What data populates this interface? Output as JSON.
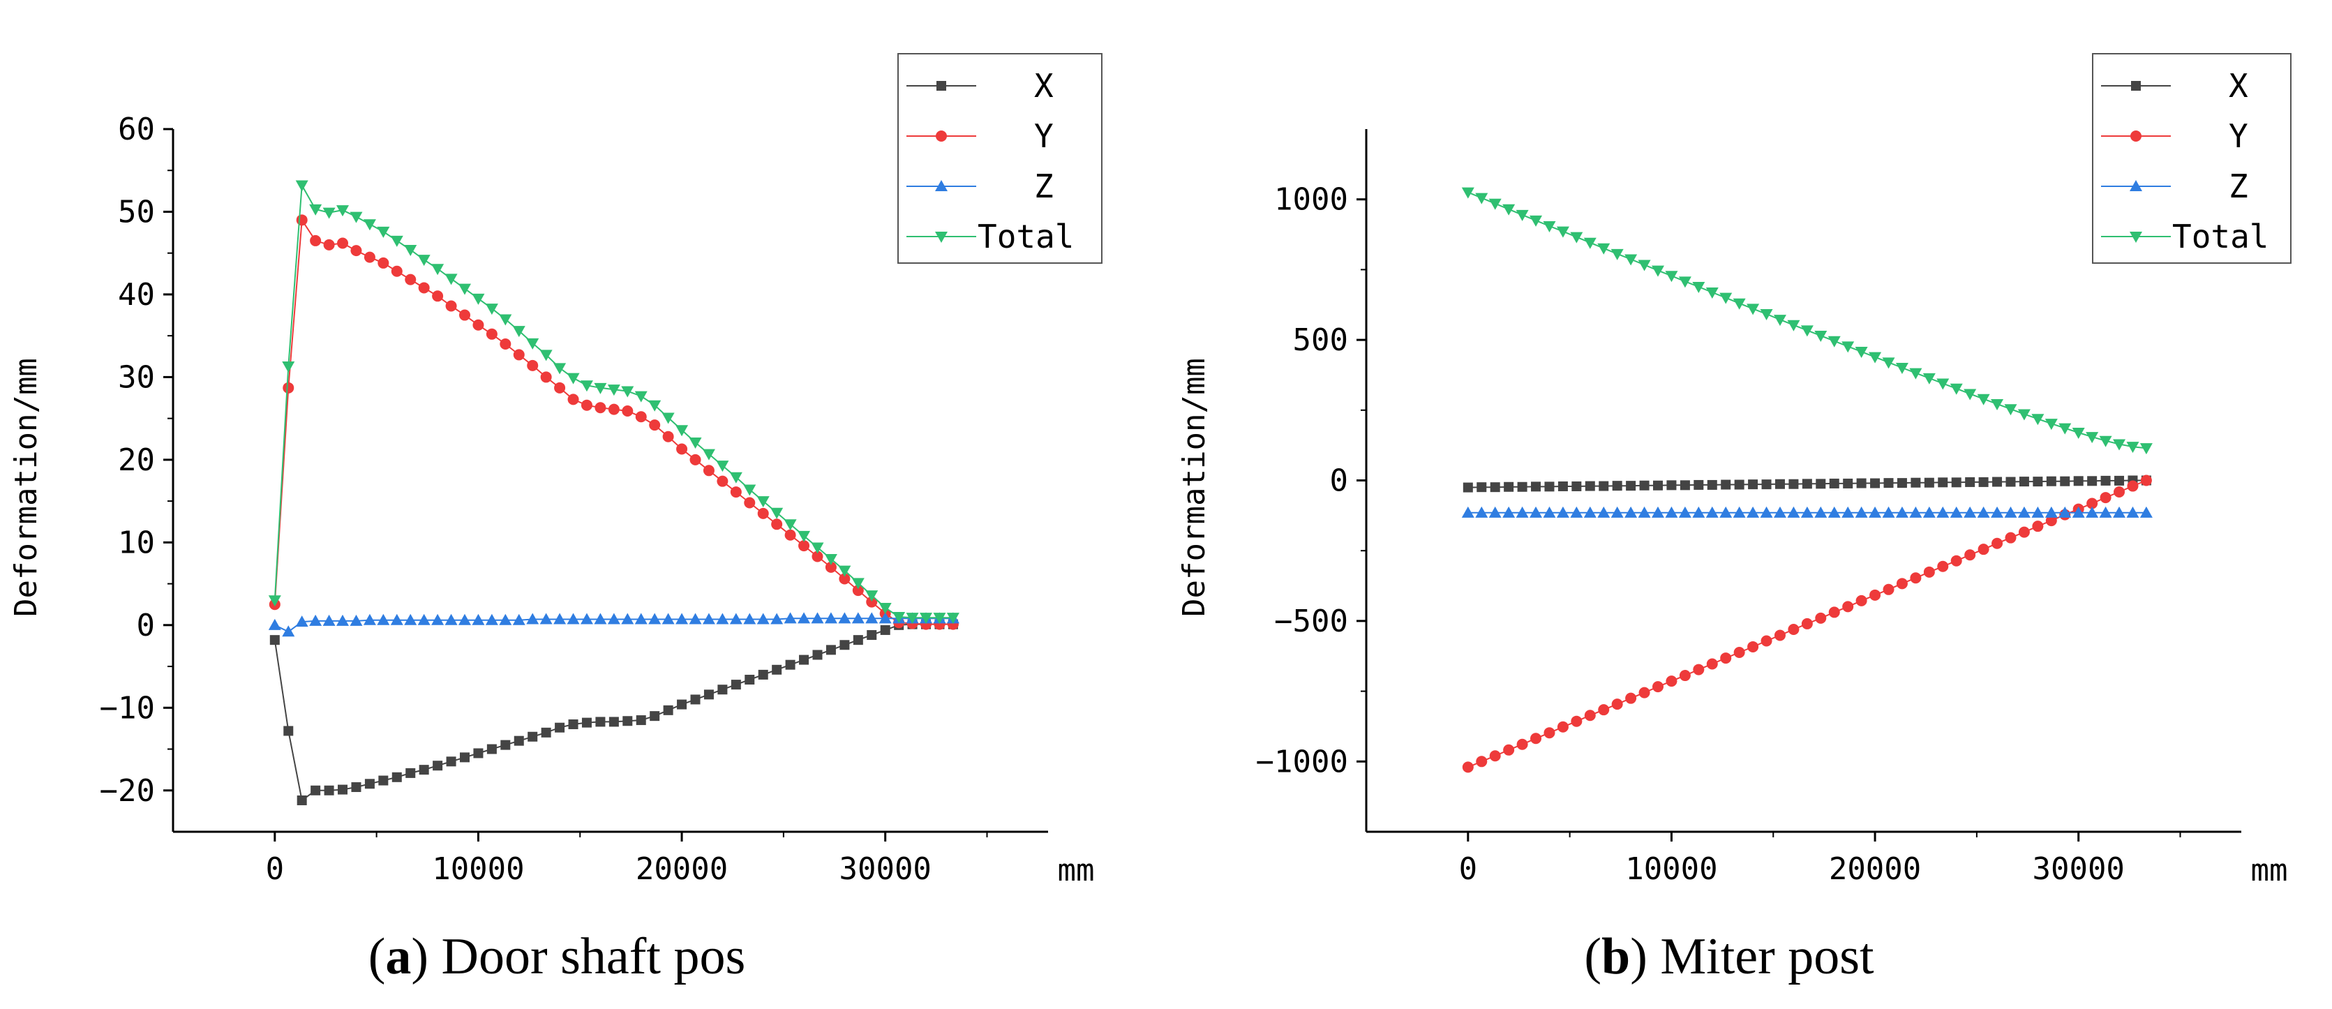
{
  "chart_data": [
    {
      "type": "line",
      "caption_letter": "a",
      "caption_text": " Door shaft pos",
      "xlabel": "mm",
      "ylabel": "Deformation/mm",
      "xlim": [
        -5000,
        38000
      ],
      "ylim": [
        -25,
        60
      ],
      "xticks": [
        0,
        10000,
        20000,
        30000
      ],
      "xtick_labels": [
        "0",
        "10000",
        "20000",
        "30000"
      ],
      "yticks": [
        -20,
        -10,
        0,
        10,
        20,
        30,
        40,
        50,
        60
      ],
      "ytick_labels": [
        "−20",
        "−10",
        "0",
        "10",
        "20",
        "30",
        "40",
        "50",
        "60"
      ],
      "x": [
        0,
        667,
        1333,
        2000,
        2667,
        3333,
        4000,
        4667,
        5333,
        6000,
        6667,
        7333,
        8000,
        8667,
        9333,
        10000,
        10667,
        11333,
        12000,
        12667,
        13333,
        14000,
        14667,
        15333,
        16000,
        16667,
        17333,
        18000,
        18667,
        19333,
        20000,
        20667,
        21333,
        22000,
        22667,
        23333,
        24000,
        24667,
        25333,
        26000,
        26667,
        27333,
        28000,
        28667,
        29333,
        30000,
        30667,
        31333,
        32000,
        32667,
        33333
      ],
      "series": [
        {
          "name": "X",
          "color": "#444444",
          "marker": "square",
          "values": [
            -1.8,
            -12.8,
            -21.2,
            -20.0,
            -20.0,
            -19.9,
            -19.6,
            -19.2,
            -18.8,
            -18.4,
            -17.9,
            -17.5,
            -17.0,
            -16.5,
            -16.0,
            -15.5,
            -15.0,
            -14.5,
            -14.0,
            -13.5,
            -13.0,
            -12.4,
            -12.0,
            -11.8,
            -11.7,
            -11.7,
            -11.6,
            -11.5,
            -11.0,
            -10.3,
            -9.6,
            -9.0,
            -8.4,
            -7.8,
            -7.2,
            -6.6,
            -6.0,
            -5.4,
            -4.8,
            -4.2,
            -3.6,
            -3.0,
            -2.4,
            -1.8,
            -1.2,
            -0.6,
            0.0,
            0.1,
            0.1,
            0.1,
            0.1
          ]
        },
        {
          "name": "Y",
          "color": "#ee3a3a",
          "marker": "circle",
          "values": [
            2.5,
            28.7,
            49.0,
            46.5,
            46.0,
            46.2,
            45.3,
            44.5,
            43.8,
            42.8,
            41.8,
            40.8,
            39.8,
            38.6,
            37.5,
            36.3,
            35.2,
            34.0,
            32.7,
            31.4,
            30.0,
            28.7,
            27.3,
            26.6,
            26.3,
            26.1,
            25.9,
            25.2,
            24.2,
            22.8,
            21.3,
            20.0,
            18.7,
            17.4,
            16.1,
            14.8,
            13.5,
            12.2,
            10.9,
            9.6,
            8.3,
            7.0,
            5.6,
            4.2,
            2.8,
            1.4,
            0.3,
            0.2,
            0.1,
            0.1,
            0.1
          ]
        },
        {
          "name": "Z",
          "color": "#2f7de1",
          "marker": "triangle-up",
          "values": [
            0.0,
            -0.8,
            0.4,
            0.5,
            0.5,
            0.5,
            0.5,
            0.6,
            0.6,
            0.6,
            0.6,
            0.6,
            0.6,
            0.6,
            0.6,
            0.6,
            0.6,
            0.6,
            0.6,
            0.7,
            0.7,
            0.7,
            0.7,
            0.7,
            0.7,
            0.7,
            0.7,
            0.7,
            0.7,
            0.7,
            0.7,
            0.7,
            0.7,
            0.7,
            0.7,
            0.7,
            0.7,
            0.7,
            0.8,
            0.8,
            0.8,
            0.8,
            0.8,
            0.8,
            0.8,
            0.8,
            0.8,
            0.8,
            0.8,
            0.8,
            0.8
          ]
        },
        {
          "name": "Total",
          "color": "#2fbf71",
          "marker": "triangle-down",
          "values": [
            3.0,
            31.3,
            53.2,
            50.3,
            49.9,
            50.2,
            49.4,
            48.5,
            47.6,
            46.5,
            45.4,
            44.2,
            43.1,
            41.9,
            40.7,
            39.5,
            38.3,
            37.0,
            35.6,
            34.1,
            32.7,
            31.1,
            29.9,
            29.0,
            28.7,
            28.5,
            28.3,
            27.7,
            26.6,
            25.1,
            23.6,
            22.1,
            20.7,
            19.3,
            17.9,
            16.4,
            15.0,
            13.6,
            12.2,
            10.8,
            9.4,
            8.0,
            6.6,
            5.1,
            3.6,
            2.1,
            1.0,
            0.9,
            0.9,
            0.9,
            0.9
          ]
        }
      ],
      "legend_position": "top-right"
    },
    {
      "type": "line",
      "caption_letter": "b",
      "caption_text": " Miter post",
      "xlabel": "mm",
      "ylabel": "Deformation/mm",
      "xlim": [
        -5000,
        38000
      ],
      "ylim": [
        -1250,
        1250
      ],
      "xticks": [
        0,
        10000,
        20000,
        30000
      ],
      "xtick_labels": [
        "0",
        "10000",
        "20000",
        "30000"
      ],
      "yticks": [
        -1000,
        -500,
        0,
        500,
        1000
      ],
      "ytick_labels": [
        "−1000",
        "−500",
        "0",
        "500",
        "1000"
      ],
      "x": [
        0,
        667,
        1333,
        2000,
        2667,
        3333,
        4000,
        4667,
        5333,
        6000,
        6667,
        7333,
        8000,
        8667,
        9333,
        10000,
        10667,
        11333,
        12000,
        12667,
        13333,
        14000,
        14667,
        15333,
        16000,
        16667,
        17333,
        18000,
        18667,
        19333,
        20000,
        20667,
        21333,
        22000,
        22667,
        23333,
        24000,
        24667,
        25333,
        26000,
        26667,
        27333,
        28000,
        28667,
        29333,
        30000,
        30667,
        31333,
        32000,
        32667,
        33333
      ],
      "series": [
        {
          "name": "X",
          "color": "#444444",
          "marker": "square",
          "values": [
            -25,
            -24,
            -24,
            -23,
            -23,
            -22,
            -22,
            -21,
            -21,
            -20,
            -20,
            -19,
            -19,
            -18,
            -18,
            -17,
            -17,
            -16,
            -16,
            -15,
            -15,
            -14,
            -14,
            -13,
            -13,
            -12,
            -12,
            -11,
            -11,
            -10,
            -10,
            -9,
            -9,
            -8,
            -8,
            -7,
            -7,
            -6,
            -6,
            -5,
            -5,
            -4,
            -4,
            -3,
            -3,
            -2,
            -2,
            -1,
            -1,
            0,
            0
          ]
        },
        {
          "name": "Y",
          "color": "#ee3a3a",
          "marker": "circle",
          "values": [
            -1020,
            -1000,
            -980,
            -959,
            -939,
            -918,
            -898,
            -877,
            -857,
            -836,
            -816,
            -796,
            -775,
            -755,
            -734,
            -714,
            -694,
            -673,
            -653,
            -632,
            -612,
            -592,
            -571,
            -551,
            -530,
            -510,
            -490,
            -469,
            -449,
            -428,
            -408,
            -388,
            -367,
            -347,
            -326,
            -306,
            -286,
            -265,
            -245,
            -224,
            -204,
            -184,
            -163,
            -143,
            -122,
            -102,
            -82,
            -61,
            -41,
            -20,
            0
          ]
        },
        {
          "name": "Z",
          "color": "#2f7de1",
          "marker": "triangle-up",
          "values": [
            -115,
            -115,
            -115,
            -115,
            -115,
            -115,
            -115,
            -115,
            -115,
            -115,
            -115,
            -115,
            -115,
            -115,
            -115,
            -115,
            -115,
            -115,
            -115,
            -115,
            -115,
            -115,
            -115,
            -115,
            -115,
            -115,
            -115,
            -115,
            -115,
            -115,
            -115,
            -115,
            -115,
            -115,
            -115,
            -115,
            -115,
            -115,
            -115,
            -115,
            -115,
            -115,
            -115,
            -115,
            -115,
            -115,
            -115,
            -115,
            -115,
            -115,
            -115
          ]
        },
        {
          "name": "Total",
          "color": "#2fbf71",
          "marker": "triangle-down",
          "values": [
            1025,
            1005,
            985,
            965,
            945,
            925,
            905,
            886,
            866,
            846,
            826,
            806,
            787,
            767,
            747,
            728,
            708,
            689,
            669,
            650,
            630,
            611,
            592,
            572,
            553,
            534,
            515,
            496,
            477,
            458,
            439,
            420,
            401,
            382,
            364,
            345,
            327,
            308,
            290,
            272,
            254,
            236,
            219,
            202,
            186,
            170,
            155,
            141,
            129,
            120,
            115
          ]
        }
      ],
      "legend_position": "top-right"
    }
  ]
}
